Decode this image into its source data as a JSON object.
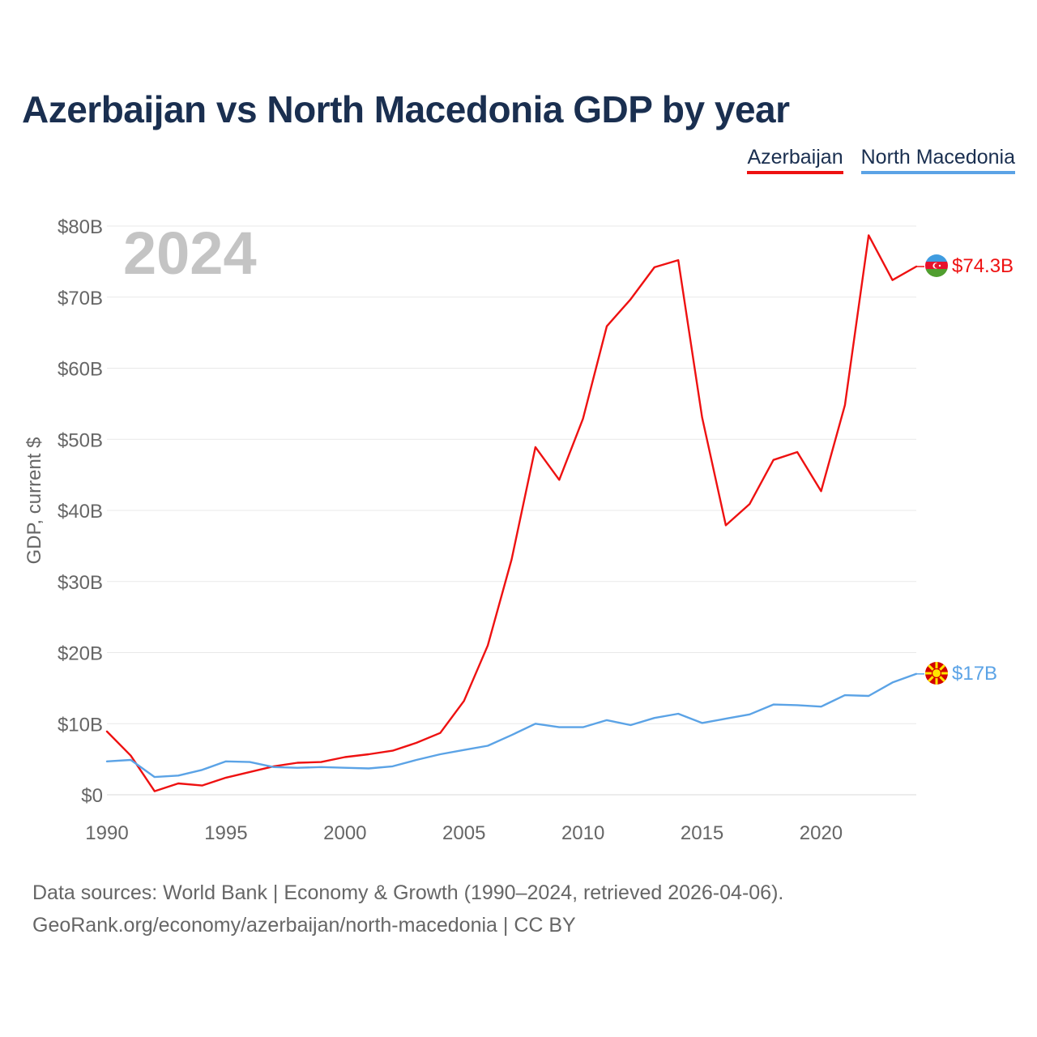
{
  "title": "Azerbaijan vs North Macedonia GDP by year",
  "legend": [
    {
      "name": "Azerbaijan",
      "color": "#ee1111"
    },
    {
      "name": "North Macedonia",
      "color": "#5ba3e6"
    }
  ],
  "year_watermark": "2024",
  "source_line1": "Data sources: World Bank | Economy & Growth (1990–2024, retrieved 2026-04-06).",
  "source_line2": "GeoRank.org/economy/azerbaijan/north-macedonia | CC BY",
  "chart_data": {
    "type": "line",
    "title": "Azerbaijan vs North Macedonia GDP by year",
    "xlabel": "",
    "ylabel": "GDP, current $",
    "xlim": [
      1990,
      2024
    ],
    "ylim": [
      0,
      80
    ],
    "x_ticks": [
      1990,
      1995,
      2000,
      2005,
      2010,
      2015,
      2020
    ],
    "x_tick_labels": [
      "1990",
      "1995",
      "2000",
      "2005",
      "2010",
      "2015",
      "2020"
    ],
    "y_ticks": [
      0,
      10,
      20,
      30,
      40,
      50,
      60,
      70,
      80
    ],
    "y_tick_labels": [
      "$0",
      "$10B",
      "$20B",
      "$30B",
      "$40B",
      "$50B",
      "$60B",
      "$70B",
      "$80B"
    ],
    "grid": true,
    "legend_position": "top-right",
    "x": [
      1990,
      1991,
      1992,
      1993,
      1994,
      1995,
      1996,
      1997,
      1998,
      1999,
      2000,
      2001,
      2002,
      2003,
      2004,
      2005,
      2006,
      2007,
      2008,
      2009,
      2010,
      2011,
      2012,
      2013,
      2014,
      2015,
      2016,
      2017,
      2018,
      2019,
      2020,
      2021,
      2022,
      2023,
      2024
    ],
    "series": [
      {
        "name": "Azerbaijan",
        "color": "#ee1111",
        "end_label": "$74.3B",
        "flag": "azerbaijan-flag",
        "values": [
          8.9,
          5.5,
          0.5,
          1.6,
          1.3,
          2.4,
          3.2,
          4.0,
          4.5,
          4.6,
          5.3,
          5.7,
          6.2,
          7.3,
          8.7,
          13.2,
          21.0,
          33.1,
          48.9,
          44.3,
          52.9,
          65.9,
          69.7,
          74.2,
          75.2,
          53.1,
          37.9,
          40.9,
          47.1,
          48.2,
          42.7,
          54.8,
          78.7,
          72.4,
          74.3
        ]
      },
      {
        "name": "North Macedonia",
        "color": "#5ba3e6",
        "end_label": "$17B",
        "flag": "north-macedonia-flag",
        "values": [
          4.7,
          4.9,
          2.5,
          2.7,
          3.5,
          4.7,
          4.6,
          3.9,
          3.8,
          3.9,
          3.8,
          3.7,
          4.0,
          4.9,
          5.7,
          6.3,
          6.9,
          8.4,
          10.0,
          9.5,
          9.5,
          10.5,
          9.8,
          10.8,
          11.4,
          10.1,
          10.7,
          11.3,
          12.7,
          12.6,
          12.4,
          14.0,
          13.9,
          15.8,
          17.0
        ]
      }
    ]
  }
}
